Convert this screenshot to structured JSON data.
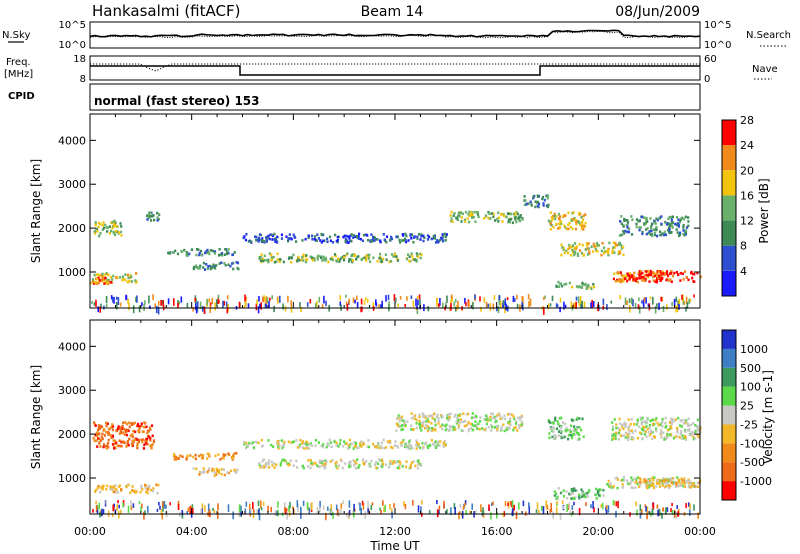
{
  "header": {
    "station": "Hankasalmi (fitACF)",
    "beam": "Beam 14",
    "date": "08/Jun/2009"
  },
  "top_panels": {
    "nsky_label": "N.Sky",
    "nsky_ticks": [
      "10^5",
      "10^0"
    ],
    "nsearch_label": "N.Search",
    "nsearch_ticks": [
      "10^5",
      "10^0"
    ],
    "freq_label_1": "Freq.",
    "freq_label_2": "[MHz]",
    "freq_ticks": [
      "18",
      "8"
    ],
    "nave_label": "Nave",
    "nave_ticks": [
      "60",
      "0"
    ],
    "cpid_label": "CPID",
    "cpid_text": "normal (fast stereo) 153"
  },
  "x_axis": {
    "label": "Time UT",
    "ticks": [
      "00:00",
      "04:00",
      "08:00",
      "12:00",
      "16:00",
      "20:00",
      "00:00"
    ]
  },
  "power_colorbar": {
    "label": "Power [dB]",
    "ticks": [
      "4",
      "8",
      "12",
      "16",
      "20",
      "24",
      "28"
    ],
    "colors": [
      "#1a1aff",
      "#2d4fd0",
      "#3e8a56",
      "#69b06a",
      "#f2c40d",
      "#f08a1a",
      "#ff0000"
    ]
  },
  "velocity_colorbar": {
    "label": "Velocity [m s-1]",
    "ticks": [
      "1000",
      "500",
      "100",
      "25",
      "-25",
      "-100",
      "-500",
      "-1000"
    ],
    "colors": [
      "#2233cc",
      "#3e7ec4",
      "#3d9a5e",
      "#5cd94a",
      "#c8c8c4",
      "#f2b829",
      "#f08a1a",
      "#ee6a18",
      "#ff0000"
    ]
  },
  "chart_data": [
    {
      "type": "heatmap",
      "panel": "power",
      "ylabel": "Slant Range [km]",
      "xlabel": "",
      "y_ticks": [
        1000,
        2000,
        3000,
        4000
      ],
      "ylim": [
        180,
        4600
      ],
      "xlim_hours": [
        0,
        24
      ],
      "bands": [
        {
          "x": [
            0.1,
            1.2
          ],
          "y": [
            1850,
            2200
          ],
          "level": 3
        },
        {
          "x": [
            0.0,
            1.8
          ],
          "y": [
            760,
            1000
          ],
          "level": 4
        },
        {
          "x": [
            0.1,
            0.8
          ],
          "y": [
            760,
            900
          ],
          "level": 5
        },
        {
          "x": [
            2.2,
            2.7
          ],
          "y": [
            2200,
            2400
          ],
          "level": 2
        },
        {
          "x": [
            3.0,
            5.8
          ],
          "y": [
            1400,
            1550
          ],
          "level": 2
        },
        {
          "x": [
            4.0,
            5.8
          ],
          "y": [
            1080,
            1250
          ],
          "level": 2
        },
        {
          "x": [
            6.0,
            14.0
          ],
          "y": [
            1700,
            1900
          ],
          "level": 1
        },
        {
          "x": [
            6.6,
            13.0
          ],
          "y": [
            1250,
            1450
          ],
          "level": 3
        },
        {
          "x": [
            14.0,
            17.0
          ],
          "y": [
            2150,
            2400
          ],
          "level": 3
        },
        {
          "x": [
            17.0,
            18.0
          ],
          "y": [
            2500,
            2800
          ],
          "level": 2
        },
        {
          "x": [
            18.0,
            19.5
          ],
          "y": [
            2000,
            2400
          ],
          "level": 4
        },
        {
          "x": [
            18.5,
            21.0
          ],
          "y": [
            1400,
            1700
          ],
          "level": 4
        },
        {
          "x": [
            18.3,
            19.8
          ],
          "y": [
            640,
            800
          ],
          "level": 3
        },
        {
          "x": [
            20.5,
            22.5
          ],
          "y": [
            800,
            1050
          ],
          "level": 5
        },
        {
          "x": [
            21.0,
            24.0
          ],
          "y": [
            800,
            1050
          ],
          "level": 6
        },
        {
          "x": [
            20.8,
            23.5
          ],
          "y": [
            1850,
            2300
          ],
          "level": 2
        }
      ]
    },
    {
      "type": "heatmap",
      "panel": "velocity",
      "ylabel": "Slant Range [km]",
      "xlabel": "Time UT",
      "y_ticks": [
        1000,
        2000,
        3000,
        4000
      ],
      "ylim": [
        180,
        4600
      ],
      "xlim_hours": [
        0,
        24
      ],
      "bands": [
        {
          "x": [
            0.1,
            2.5
          ],
          "y": [
            1700,
            2300
          ],
          "level": 7
        },
        {
          "x": [
            0.1,
            2.7
          ],
          "y": [
            680,
            880
          ],
          "level": 5
        },
        {
          "x": [
            3.2,
            5.8
          ],
          "y": [
            1450,
            1600
          ],
          "level": 6
        },
        {
          "x": [
            4.0,
            5.8
          ],
          "y": [
            1080,
            1250
          ],
          "level": 5
        },
        {
          "x": [
            6.0,
            14.0
          ],
          "y": [
            1700,
            1900
          ],
          "level": 4
        },
        {
          "x": [
            6.6,
            13.0
          ],
          "y": [
            1250,
            1450
          ],
          "level": 4
        },
        {
          "x": [
            12.0,
            17.0
          ],
          "y": [
            2100,
            2500
          ],
          "level": 4
        },
        {
          "x": [
            18.0,
            19.4
          ],
          "y": [
            1900,
            2400
          ],
          "level": 3
        },
        {
          "x": [
            18.2,
            20.2
          ],
          "y": [
            550,
            800
          ],
          "level": 3
        },
        {
          "x": [
            20.3,
            23.8
          ],
          "y": [
            800,
            1050
          ],
          "level": 4
        },
        {
          "x": [
            21.2,
            24.0
          ],
          "y": [
            800,
            1000
          ],
          "level": 5
        },
        {
          "x": [
            20.5,
            24.0
          ],
          "y": [
            1900,
            2400
          ],
          "level": 4
        }
      ]
    }
  ]
}
